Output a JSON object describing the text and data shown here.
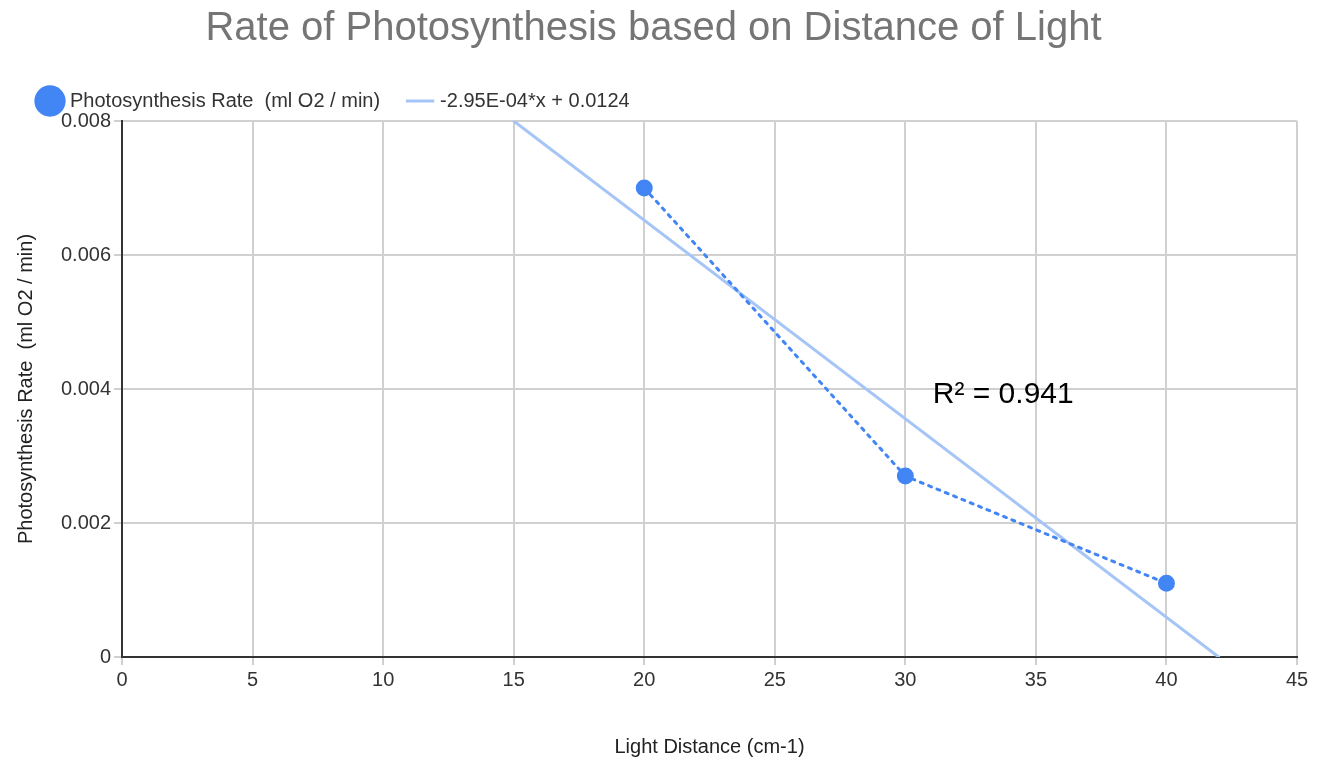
{
  "chart_data": {
    "type": "scatter",
    "title": "Rate of Photosynthesis based on Distance of Light",
    "xlabel": "Light Distance (cm-1)",
    "ylabel": "Photosynthesis Rate  (ml O2 / min)",
    "series": [
      {
        "name": "Photosynthesis Rate  (ml O2 / min)",
        "type": "line",
        "color": "#4285f4",
        "x": [
          20,
          30,
          40
        ],
        "values": [
          0.007,
          0.0027,
          0.0011
        ],
        "marker": "circle",
        "line_style": "dotted"
      },
      {
        "name": "-2.95E-04*x + 0.0124",
        "type": "line",
        "color": "#a6c5f7",
        "x": [
          15,
          42
        ],
        "values": [
          0.008,
          0
        ],
        "marker": "none",
        "line_style": "solid"
      }
    ],
    "annotations": [
      "R² = 0.941"
    ],
    "xlim": [
      0,
      45
    ],
    "xticks": [
      0,
      5,
      10,
      15,
      20,
      25,
      30,
      35,
      40,
      45
    ],
    "ylim": [
      0,
      0.008
    ],
    "yticks": [
      0,
      0.002,
      0.004,
      0.006,
      0.008
    ],
    "grid": true,
    "legend": "top left"
  }
}
